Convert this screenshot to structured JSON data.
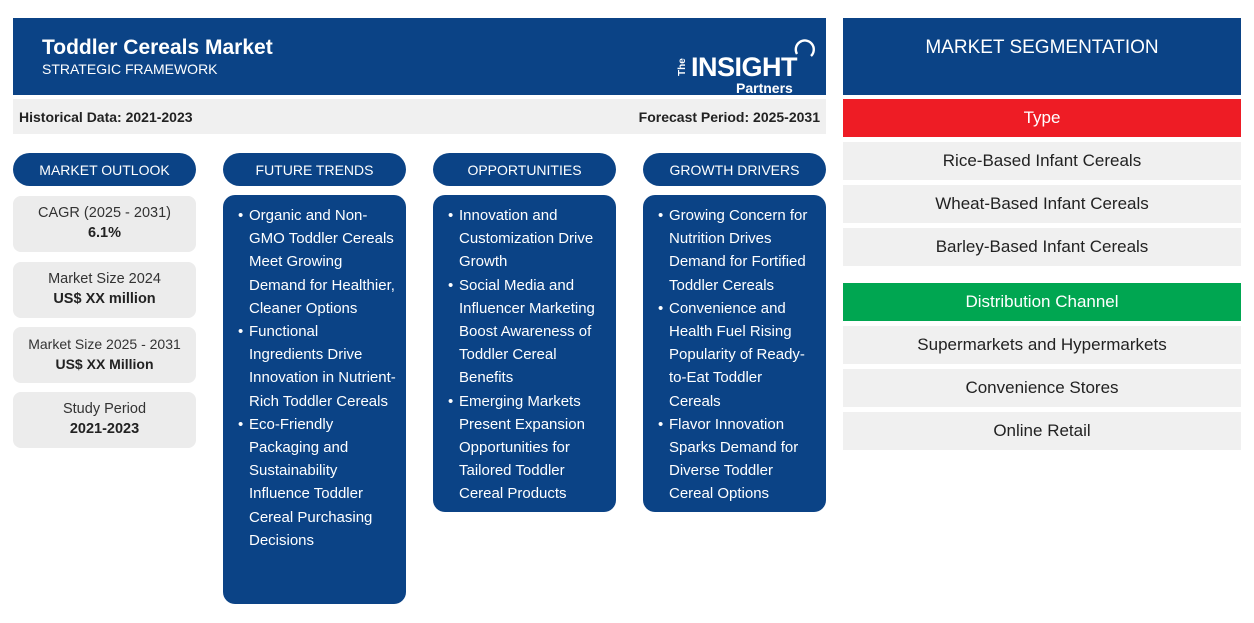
{
  "header": {
    "title": "Toddler Cereals Market",
    "subtitle": "STRATEGIC FRAMEWORK"
  },
  "logo": {
    "the": "The",
    "insight": "INSIGHT",
    "partners": "Partners"
  },
  "period": {
    "historical": "Historical Data: 2021-2023",
    "forecast": "Forecast Period: 2025-2031"
  },
  "market_outlook": {
    "heading": "MARKET OUTLOOK",
    "items": [
      {
        "label": "CAGR (2025 - 2031)",
        "value": "6.1%"
      },
      {
        "label": "Market Size 2024",
        "value": "US$ XX million"
      },
      {
        "label": "Market Size 2025 - 2031",
        "value": "US$ XX Million"
      },
      {
        "label": "Study Period",
        "value": "2021-2023"
      }
    ]
  },
  "future_trends": {
    "heading": "FUTURE TRENDS",
    "items": [
      "Organic and Non-GMO Toddler Cereals Meet Growing Demand for Healthier, Cleaner Options",
      "Functional Ingredients Drive Innovation in Nutrient-Rich Toddler Cereals",
      "Eco-Friendly Packaging and Sustainability Influence Toddler Cereal Purchasing Decisions"
    ]
  },
  "opportunities": {
    "heading": "OPPORTUNITIES",
    "items": [
      "Innovation and Customization Drive Growth",
      "Social Media and Influencer Marketing Boost Awareness of Toddler Cereal Benefits",
      "Emerging Markets Present Expansion Opportunities for Tailored Toddler Cereal Products"
    ]
  },
  "growth_drivers": {
    "heading": "GROWTH DRIVERS",
    "items": [
      "Growing Concern for Nutrition Drives Demand for Fortified Toddler Cereals",
      "Convenience and Health Fuel Rising Popularity of Ready-to-Eat Toddler Cereals",
      "Flavor Innovation Sparks Demand for Diverse Toddler Cereal Options"
    ]
  },
  "segmentation": {
    "heading": "MARKET SEGMENTATION",
    "type": {
      "label": "Type",
      "color": "#ee1c25",
      "items": [
        "Rice-Based Infant Cereals",
        "Wheat-Based Infant Cereals",
        "Barley-Based Infant Cereals"
      ]
    },
    "distribution": {
      "label": "Distribution Channel",
      "color": "#00a651",
      "items": [
        "Supermarkets and Hypermarkets",
        "Convenience Stores",
        "Online Retail"
      ]
    }
  },
  "colors": {
    "primary": "#0b4386",
    "panel": "#f0f0f0"
  }
}
